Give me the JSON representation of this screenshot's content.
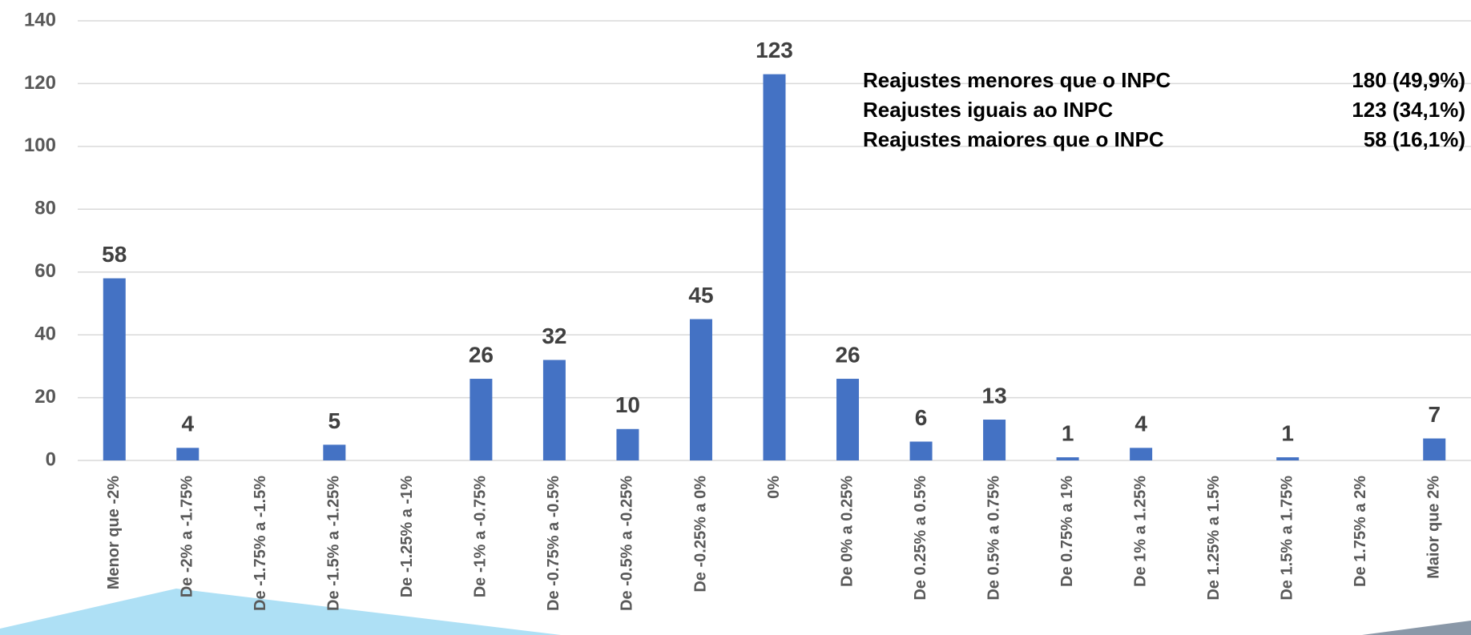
{
  "chart_data": {
    "type": "bar",
    "categories": [
      "Menor que -2%",
      "De -2% a -1.75%",
      "De -1.75% a -1.5%",
      "De -1.5% a -1.25%",
      "De -1.25% a -1%",
      "De -1% a -0.75%",
      "De -0.75% a -0.5%",
      "De -0.5% a -0.25%",
      "De -0.25% a 0%",
      "0%",
      "De 0% a 0.25%",
      "De 0.25% a 0.5%",
      "De 0.5% a 0.75%",
      "De 0.75% a 1%",
      "De 1% a 1.25%",
      "De 1.25% a 1.5%",
      "De 1.5% a 1.75%",
      "De 1.75% a 2%",
      "Maior que 2%"
    ],
    "values": [
      58,
      4,
      null,
      5,
      null,
      26,
      32,
      10,
      45,
      123,
      26,
      6,
      13,
      1,
      4,
      null,
      1,
      null,
      7
    ],
    "color": "#4472c4",
    "ylim": [
      0,
      140
    ],
    "yticks": [
      0,
      20,
      40,
      60,
      80,
      100,
      120,
      140
    ],
    "grid": true,
    "annotations": [
      {
        "label": "Reajustes menores que o INPC",
        "value": "180 (49,9%)"
      },
      {
        "label": "Reajustes iguais ao INPC",
        "value": "123 (34,1%)"
      },
      {
        "label": "Reajustes maiores que o INPC",
        "value": "58 (16,1%)"
      }
    ]
  }
}
